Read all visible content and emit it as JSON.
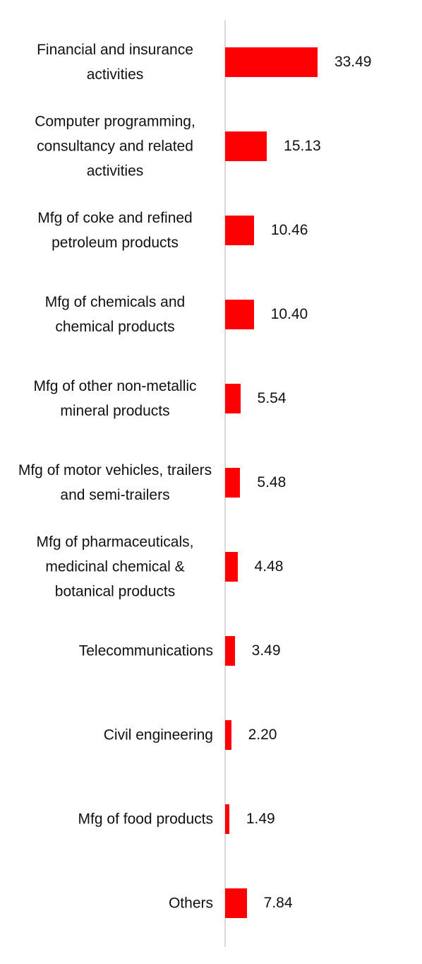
{
  "chart_data": {
    "type": "bar",
    "orientation": "horizontal",
    "color": "#ff0000",
    "categories": [
      "Financial and insurance activities",
      "Computer programming, consultancy and related activities",
      "Mfg of coke and refined petroleum products",
      "Mfg of chemicals and chemical products",
      "Mfg of other non-metallic mineral products",
      "Mfg of motor vehicles, trailers and semi-trailers",
      "Mfg of pharmaceuticals, medicinal chemical & botanical products",
      "Telecommunications",
      "Civil engineering",
      "Mfg of food products",
      "Others"
    ],
    "values": [
      33.49,
      15.13,
      10.46,
      10.4,
      5.54,
      5.48,
      4.48,
      3.49,
      2.2,
      1.49,
      7.84
    ],
    "value_labels": [
      "33.49",
      "15.13",
      "10.46",
      "10.40",
      "5.54",
      "5.48",
      "4.48",
      "3.49",
      "2.20",
      "1.49",
      "7.84"
    ]
  }
}
